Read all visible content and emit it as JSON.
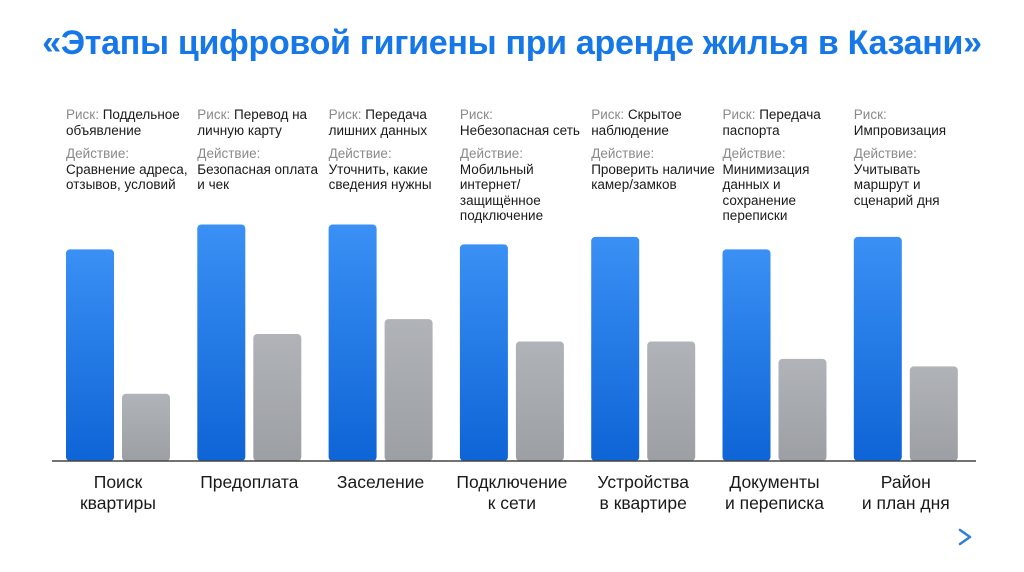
{
  "chart_data": {
    "type": "bar",
    "title": "«Этапы цифровой гигиены при аренде жилья в Казани»",
    "risk_label": "Риск:",
    "action_label": "Действие:",
    "categories": [
      "Поиск\nквартиры",
      "Предоплата",
      "Заселение",
      "Подключение\nк сети",
      "Устройства\nв квартире",
      "Документы\nи переписка",
      "Район\nи план дня"
    ],
    "annotations": [
      {
        "risk": "Поддельное объявление",
        "action": "Сравнение адреса, отзывов, условий"
      },
      {
        "risk": "Перевод на личную карту",
        "action": "Безопасная оплата и чек"
      },
      {
        "risk": "Передача лишних данных",
        "action": "Уточнить, какие сведения нужны"
      },
      {
        "risk": "Небезопасная сеть",
        "action": "Мобильный интернет/ защищённое подключение"
      },
      {
        "risk": "Скрытое наблюдение",
        "action": "Проверить наличие камер/замков"
      },
      {
        "risk": "Передача паспорта",
        "action": "Минимизация данных и сохранение переписки"
      },
      {
        "risk": "Импровизация",
        "action": "Учитывать маршрут и сценарий дня"
      }
    ],
    "series": [
      {
        "values": [
          0.85,
          0.95,
          0.95,
          0.87,
          0.9,
          0.85,
          0.9
        ],
        "color": "#1f80f0"
      },
      {
        "values": [
          0.27,
          0.51,
          0.57,
          0.48,
          0.48,
          0.41,
          0.38
        ],
        "color": "#a4a7ab"
      }
    ],
    "ylim": [
      0,
      1
    ],
    "grid": false,
    "legend": "none",
    "colors": {
      "title": "#1677e8",
      "axis": "#444444",
      "arrow": "#2f7fd8"
    }
  }
}
